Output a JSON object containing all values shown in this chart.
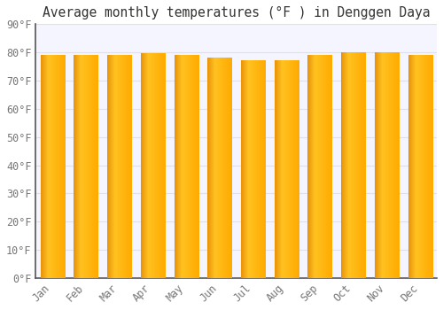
{
  "title": "Average monthly temperatures (°F ) in Denggen Daya",
  "months": [
    "Jan",
    "Feb",
    "Mar",
    "Apr",
    "May",
    "Jun",
    "Jul",
    "Aug",
    "Sep",
    "Oct",
    "Nov",
    "Dec"
  ],
  "values": [
    79,
    79,
    79,
    79.5,
    79,
    78,
    77,
    77,
    79,
    80,
    80,
    79
  ],
  "bar_color_left": "#E8920A",
  "bar_color_mid": "#FFC220",
  "bar_color_right": "#FFAA00",
  "background_color": "#FFFFFF",
  "plot_bg_color": "#F5F5FF",
  "grid_color": "#E0E0E8",
  "ylim": [
    0,
    90
  ],
  "yticks": [
    0,
    10,
    20,
    30,
    40,
    50,
    60,
    70,
    80,
    90
  ],
  "title_fontsize": 10.5,
  "tick_fontsize": 8.5,
  "figsize": [
    5.0,
    3.5
  ],
  "dpi": 100
}
